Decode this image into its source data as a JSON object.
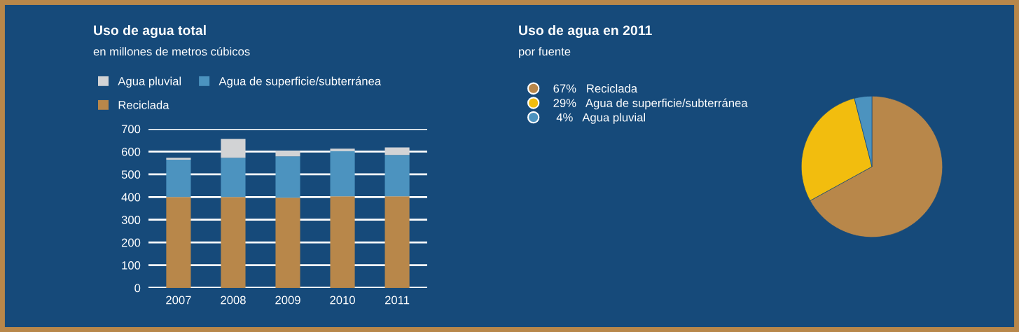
{
  "chart_data": [
    {
      "type": "bar",
      "title": "Uso de agua total",
      "subtitle": "en millones de metros cúbicos",
      "categories": [
        "2007",
        "2008",
        "2009",
        "2010",
        "2011"
      ],
      "stacked": true,
      "series": [
        {
          "name": "Reciclada",
          "color": "#b8874a",
          "values": [
            400,
            400,
            397,
            403,
            403
          ]
        },
        {
          "name": "Agua de superficie/subterránea",
          "color": "#4c93bf",
          "values": [
            164,
            173,
            182,
            200,
            182
          ]
        },
        {
          "name": "Agua pluvial",
          "color": "#d2d3d5",
          "values": [
            9,
            83,
            24,
            10,
            33
          ]
        }
      ],
      "ylim": [
        0,
        700
      ],
      "yticks": [
        0,
        100,
        200,
        300,
        400,
        500,
        600,
        700
      ],
      "grid": "y",
      "legend": "top"
    },
    {
      "type": "pie",
      "title": "Uso de agua en 2011",
      "subtitle": "por fuente",
      "categories": [
        "Reciclada",
        "Agua de superficie/subterránea",
        "Agua pluvial"
      ],
      "values": [
        67,
        29,
        4
      ],
      "value_labels": [
        "67%",
        "29%",
        "4%"
      ],
      "colors": [
        "#b8874a",
        "#f2bd0e",
        "#4c93bf"
      ],
      "legend": "left"
    }
  ]
}
